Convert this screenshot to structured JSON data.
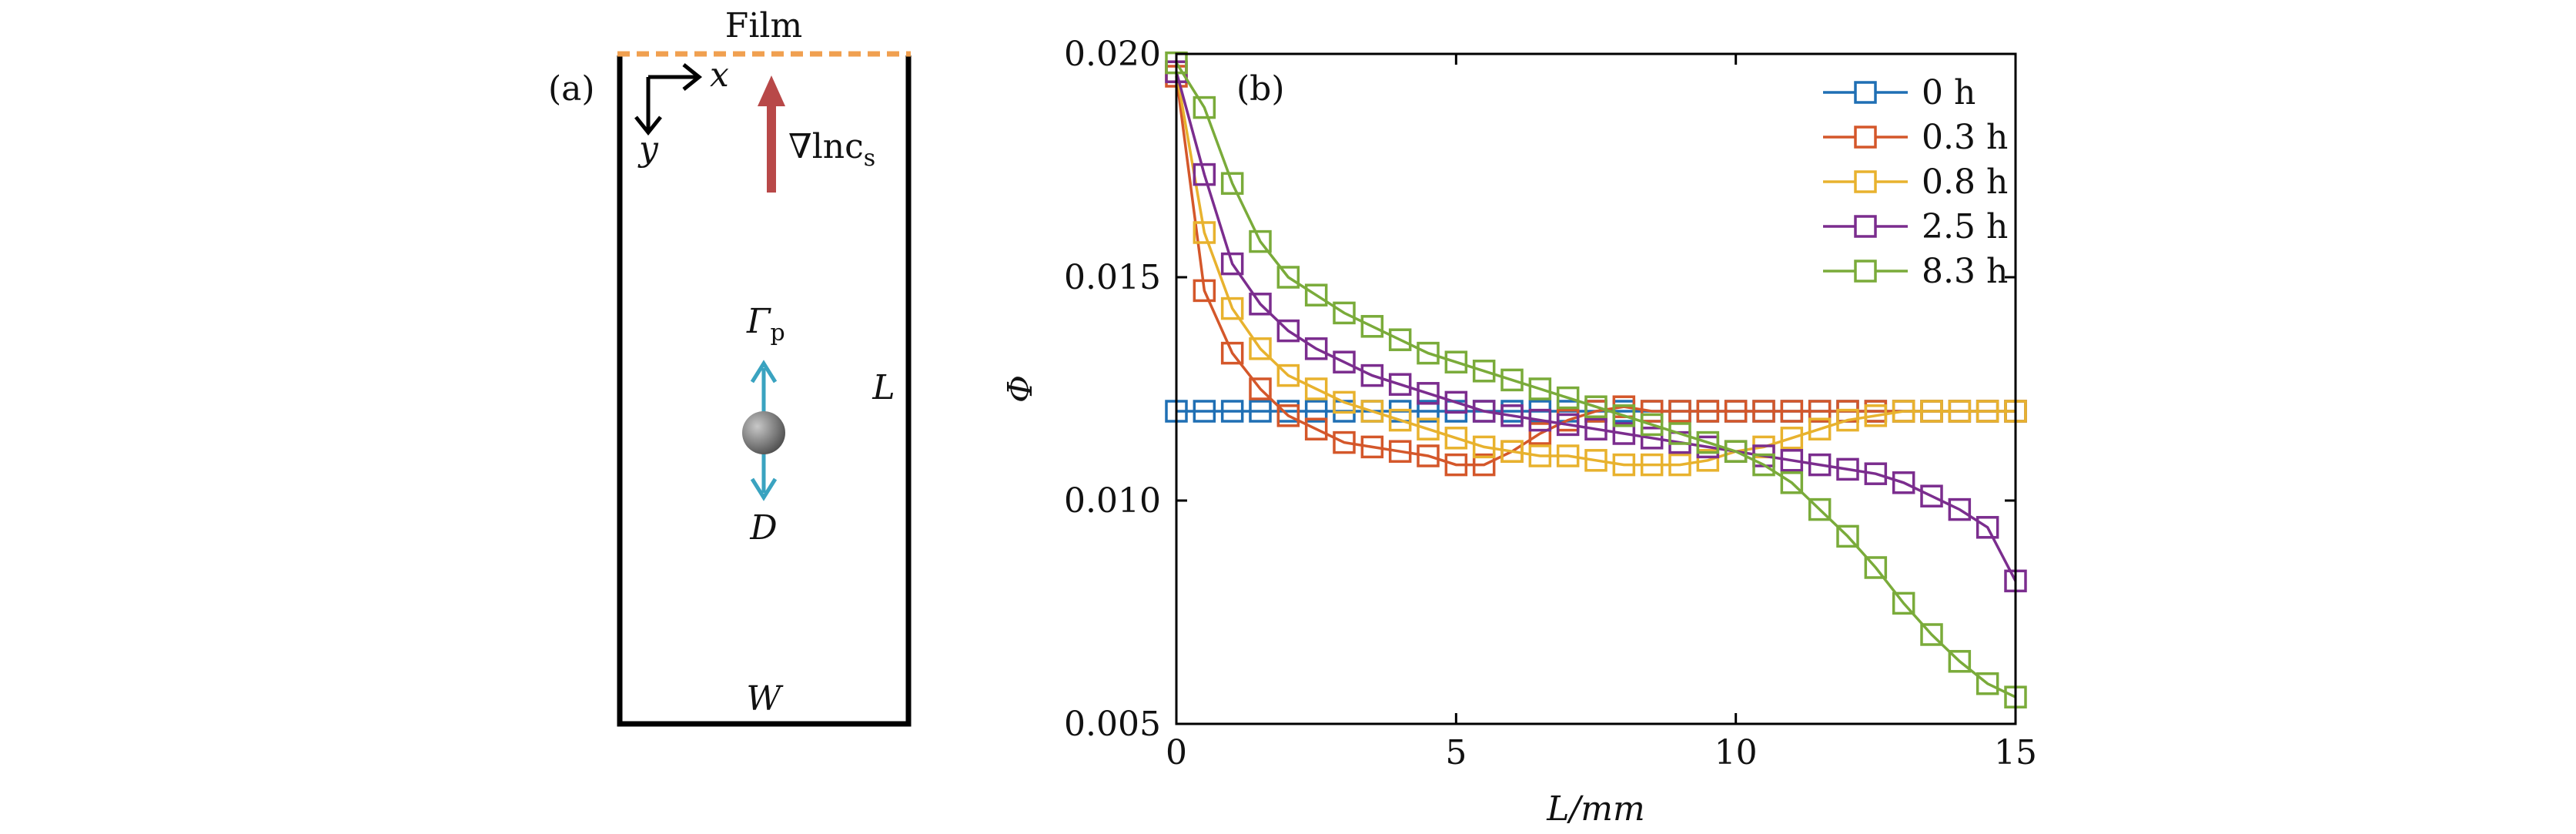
{
  "panel_a": {
    "label": "(a)",
    "film_label": "Film",
    "x_axis_label": "x",
    "y_axis_label": "y",
    "gradient_label_prefix": "∇lnc",
    "gradient_label_sub": "s",
    "gamma_label": "Γ",
    "gamma_sub": "p",
    "d_label": "D",
    "l_label": "L",
    "w_label": "W",
    "colors": {
      "film": "#f0a050",
      "gradient_arrow": "#b84848",
      "particle_arrow": "#3aa3c0",
      "particle": "#707070"
    }
  },
  "chart_data": {
    "type": "line",
    "panel_label": "(b)",
    "title": "",
    "xlabel": "L/mm",
    "ylabel": "Φ",
    "xlim": [
      0,
      15
    ],
    "ylim": [
      0.005,
      0.02
    ],
    "xticks": [
      0,
      5,
      10,
      15
    ],
    "xtick_labels": [
      "0",
      "5",
      "10",
      "15"
    ],
    "yticks": [
      0.005,
      0.01,
      0.015,
      0.02
    ],
    "ytick_labels": [
      "0.005",
      "0.010",
      "0.015",
      "0.020"
    ],
    "grid": false,
    "legend_position": "top-right",
    "marker": "square",
    "x": [
      0,
      0.5,
      1,
      1.5,
      2,
      2.5,
      3,
      3.5,
      4,
      4.5,
      5,
      5.5,
      6,
      6.5,
      7,
      7.5,
      8,
      8.5,
      9,
      9.5,
      10,
      10.5,
      11,
      11.5,
      12,
      12.5,
      13,
      13.5,
      14,
      14.5,
      15
    ],
    "series": [
      {
        "name": "0 h",
        "color": "#1f6fb4",
        "values": [
          0.012,
          0.012,
          0.012,
          0.012,
          0.012,
          0.012,
          0.012,
          0.012,
          0.012,
          0.012,
          0.012,
          0.012,
          0.012,
          0.012,
          0.012,
          0.012,
          0.012,
          0.012,
          0.012,
          0.012,
          0.012,
          0.012,
          0.012,
          0.012,
          0.012,
          0.012,
          0.012,
          0.012,
          0.012,
          0.012,
          0.012
        ]
      },
      {
        "name": "0.3 h",
        "color": "#d4572a",
        "values": [
          0.0195,
          0.0147,
          0.0133,
          0.0125,
          0.0119,
          0.0116,
          0.0113,
          0.0112,
          0.0111,
          0.011,
          0.0108,
          0.0108,
          0.0111,
          0.0115,
          0.0118,
          0.012,
          0.0121,
          0.012,
          0.012,
          0.012,
          0.012,
          0.012,
          0.012,
          0.012,
          0.012,
          0.012,
          0.012,
          0.012,
          0.012,
          0.012,
          0.012
        ]
      },
      {
        "name": "0.8 h",
        "color": "#e8b22e",
        "values": [
          0.0196,
          0.016,
          0.0143,
          0.0134,
          0.0128,
          0.0125,
          0.0122,
          0.012,
          0.0118,
          0.0116,
          0.0114,
          0.0112,
          0.0111,
          0.011,
          0.011,
          0.0109,
          0.0108,
          0.0108,
          0.0108,
          0.0109,
          0.0111,
          0.0112,
          0.0114,
          0.0116,
          0.0118,
          0.0119,
          0.012,
          0.012,
          0.012,
          0.012,
          0.012
        ]
      },
      {
        "name": "2.5 h",
        "color": "#7b2d8e",
        "values": [
          0.0196,
          0.0173,
          0.0153,
          0.0144,
          0.0138,
          0.0134,
          0.0131,
          0.0128,
          0.0126,
          0.0124,
          0.0122,
          0.012,
          0.0119,
          0.0118,
          0.0117,
          0.0116,
          0.0115,
          0.0114,
          0.0113,
          0.0112,
          0.0111,
          0.011,
          0.0109,
          0.0108,
          0.0107,
          0.0106,
          0.0104,
          0.0101,
          0.0098,
          0.0094,
          0.0082
        ]
      },
      {
        "name": "8.3 h",
        "color": "#7aab3a",
        "values": [
          0.0198,
          0.0188,
          0.0171,
          0.0158,
          0.015,
          0.0146,
          0.0142,
          0.0139,
          0.0136,
          0.0133,
          0.0131,
          0.0129,
          0.0127,
          0.0125,
          0.0123,
          0.0121,
          0.0119,
          0.0117,
          0.0115,
          0.0113,
          0.0111,
          0.0108,
          0.0104,
          0.0098,
          0.0092,
          0.0085,
          0.0077,
          0.007,
          0.0064,
          0.0059,
          0.0056
        ]
      }
    ]
  }
}
